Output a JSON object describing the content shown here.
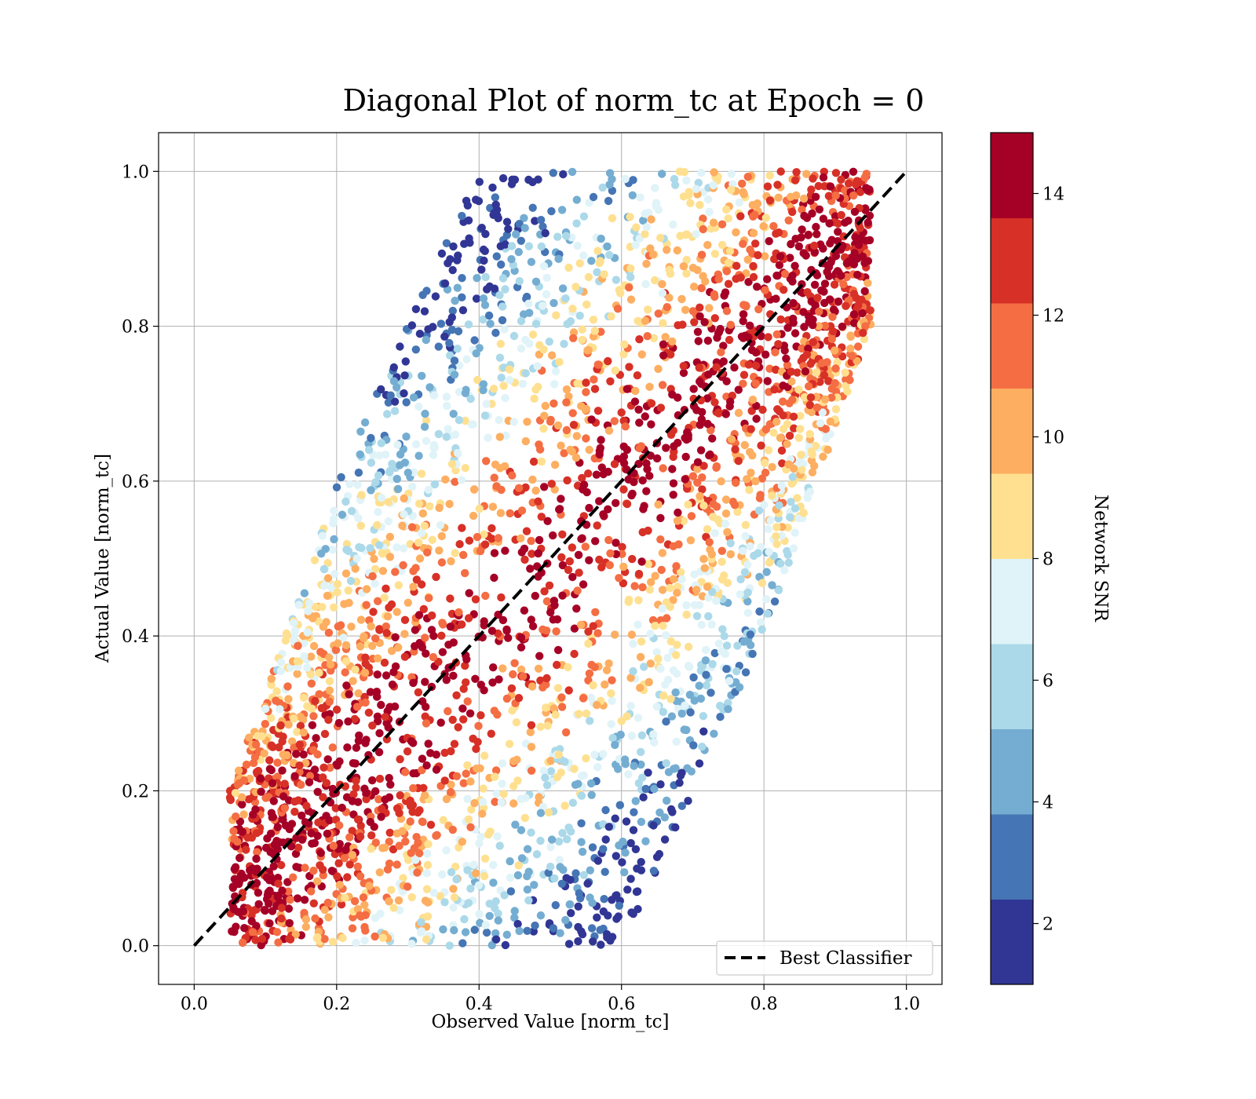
{
  "chart_data": {
    "type": "scatter",
    "title": "Diagonal Plot of norm_tc at Epoch = 0",
    "xlabel": "Observed Value [norm_tc]",
    "ylabel": "Actual Value [norm_tc]",
    "xlim": [
      -0.05,
      1.05
    ],
    "ylim": [
      -0.05,
      1.05
    ],
    "xticks": [
      "0.0",
      "0.2",
      "0.4",
      "0.6",
      "0.8",
      "1.0"
    ],
    "yticks": [
      "0.0",
      "0.2",
      "0.4",
      "0.6",
      "0.8",
      "1.0"
    ],
    "grid": true,
    "reference_line": {
      "label": "Best Classifier",
      "x": [
        0,
        1
      ],
      "y": [
        0,
        1
      ],
      "style": "dashed",
      "color": "#000000"
    },
    "legend": {
      "placement": "lower-right",
      "entries": [
        "Best Classifier"
      ]
    },
    "colorbar": {
      "label": "Network SNR",
      "range": [
        1,
        15
      ],
      "ticks": [
        "2",
        "4",
        "6",
        "8",
        "10",
        "12",
        "14"
      ],
      "colors": [
        "#313695",
        "#4575b4",
        "#74add1",
        "#abd9e9",
        "#e0f3f8",
        "#fee090",
        "#fdae61",
        "#f46d43",
        "#d73027",
        "#a50026"
      ]
    },
    "point_distribution": {
      "description_of_data": "dense band of points around the diagonal; points far from the diagonal have lower SNR",
      "approx_band": [
        {
          "x": 0.05,
          "y_min": 0.0,
          "y_max": 0.2
        },
        {
          "x": 0.2,
          "y_min": 0.0,
          "y_max": 0.6
        },
        {
          "x": 0.4,
          "y_min": 0.0,
          "y_max": 1.0
        },
        {
          "x": 0.6,
          "y_min": 0.0,
          "y_max": 1.0
        },
        {
          "x": 0.8,
          "y_min": 0.4,
          "y_max": 1.0
        },
        {
          "x": 0.95,
          "y_min": 0.8,
          "y_max": 1.0
        }
      ]
    }
  }
}
